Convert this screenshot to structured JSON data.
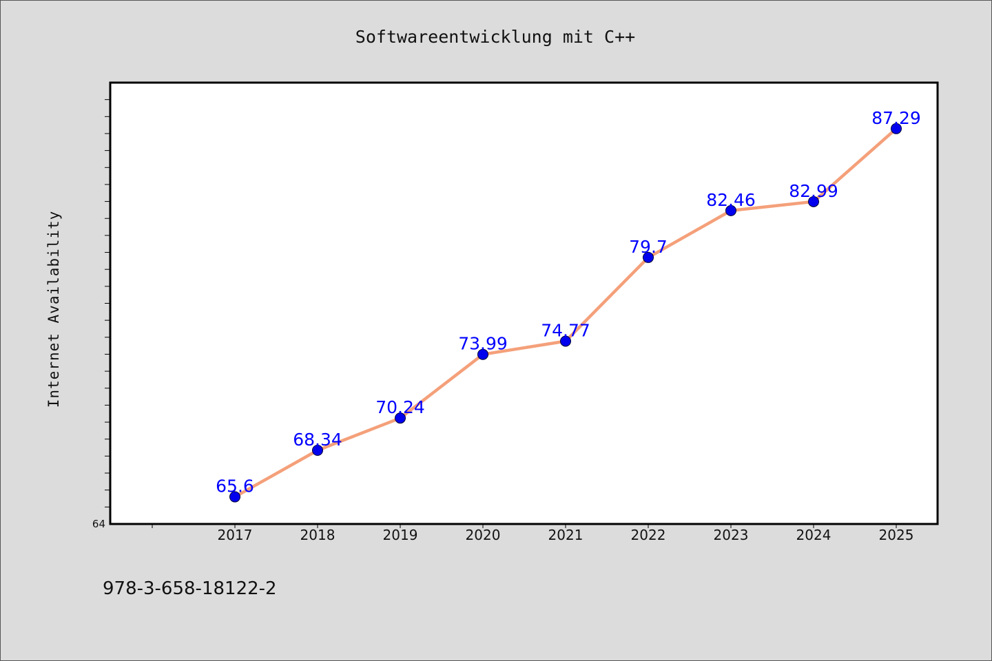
{
  "chart_data": {
    "type": "line",
    "title": "Softwareentwicklung mit C++",
    "xlabel": "",
    "ylabel": "Internet Availability",
    "categories": [
      "2017",
      "2018",
      "2019",
      "2020",
      "2021",
      "2022",
      "2023",
      "2024",
      "2025"
    ],
    "series": [
      {
        "values": [
          65.6,
          68.34,
          70.24,
          73.99,
          74.77,
          79.7,
          82.46,
          82.99,
          87.29
        ],
        "labels": [
          "65.6",
          "68.34",
          "70.24",
          "73.99",
          "74.77",
          "79.7",
          "82.46",
          "82.99",
          "87.29"
        ],
        "line_color": "#f4a07a",
        "marker_color": "#0000ee"
      }
    ],
    "yticks": [
      "64"
    ],
    "ylim": [
      64,
      90
    ],
    "grid": false,
    "legend": "none"
  },
  "footer": {
    "text": "978-3-658-18122-2"
  },
  "colors": {
    "background": "#dcdcdc",
    "plot_background": "#ffffff",
    "line": "#f4a07a",
    "marker": "#0000ee",
    "data_label": "#0000ff"
  }
}
